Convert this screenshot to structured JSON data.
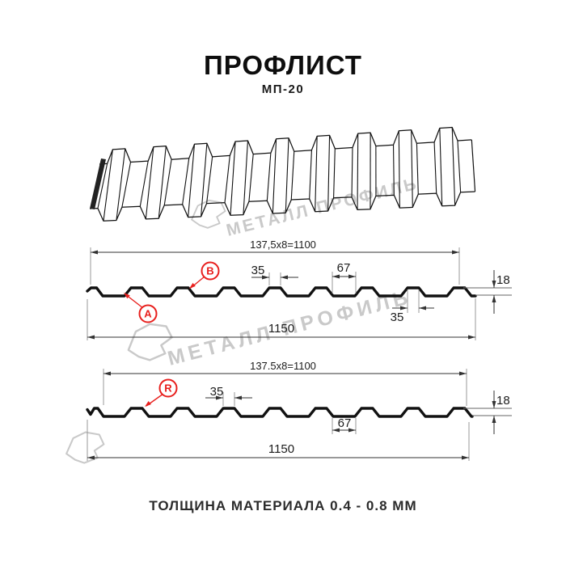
{
  "title": "ПРОФЛИСТ",
  "subtitle": "МП-20",
  "footer": "ТОЛЩИНА МАТЕРИАЛА 0.4 - 0.8 ММ",
  "watermark_text": "МЕТАЛЛ ПРОФИЛЬ",
  "front_view": {
    "dim_pitch": "137,5x8=1100",
    "dim_rib_top": "35",
    "dim_valley": "67",
    "dim_rib_low": "35",
    "dim_height": "18",
    "dim_width": "1150",
    "label_a": "A",
    "label_b": "B"
  },
  "back_view": {
    "dim_pitch": "137.5x8=1100",
    "dim_rib_top": "35",
    "dim_valley": "67",
    "dim_height": "18",
    "dim_width": "1150",
    "label_r": "R"
  },
  "colors": {
    "accent_red": "#e8201e",
    "line_black": "#111111",
    "dim_line": "#333333",
    "ext_line": "#999999",
    "watermark_gray": "#c9c9c9"
  }
}
